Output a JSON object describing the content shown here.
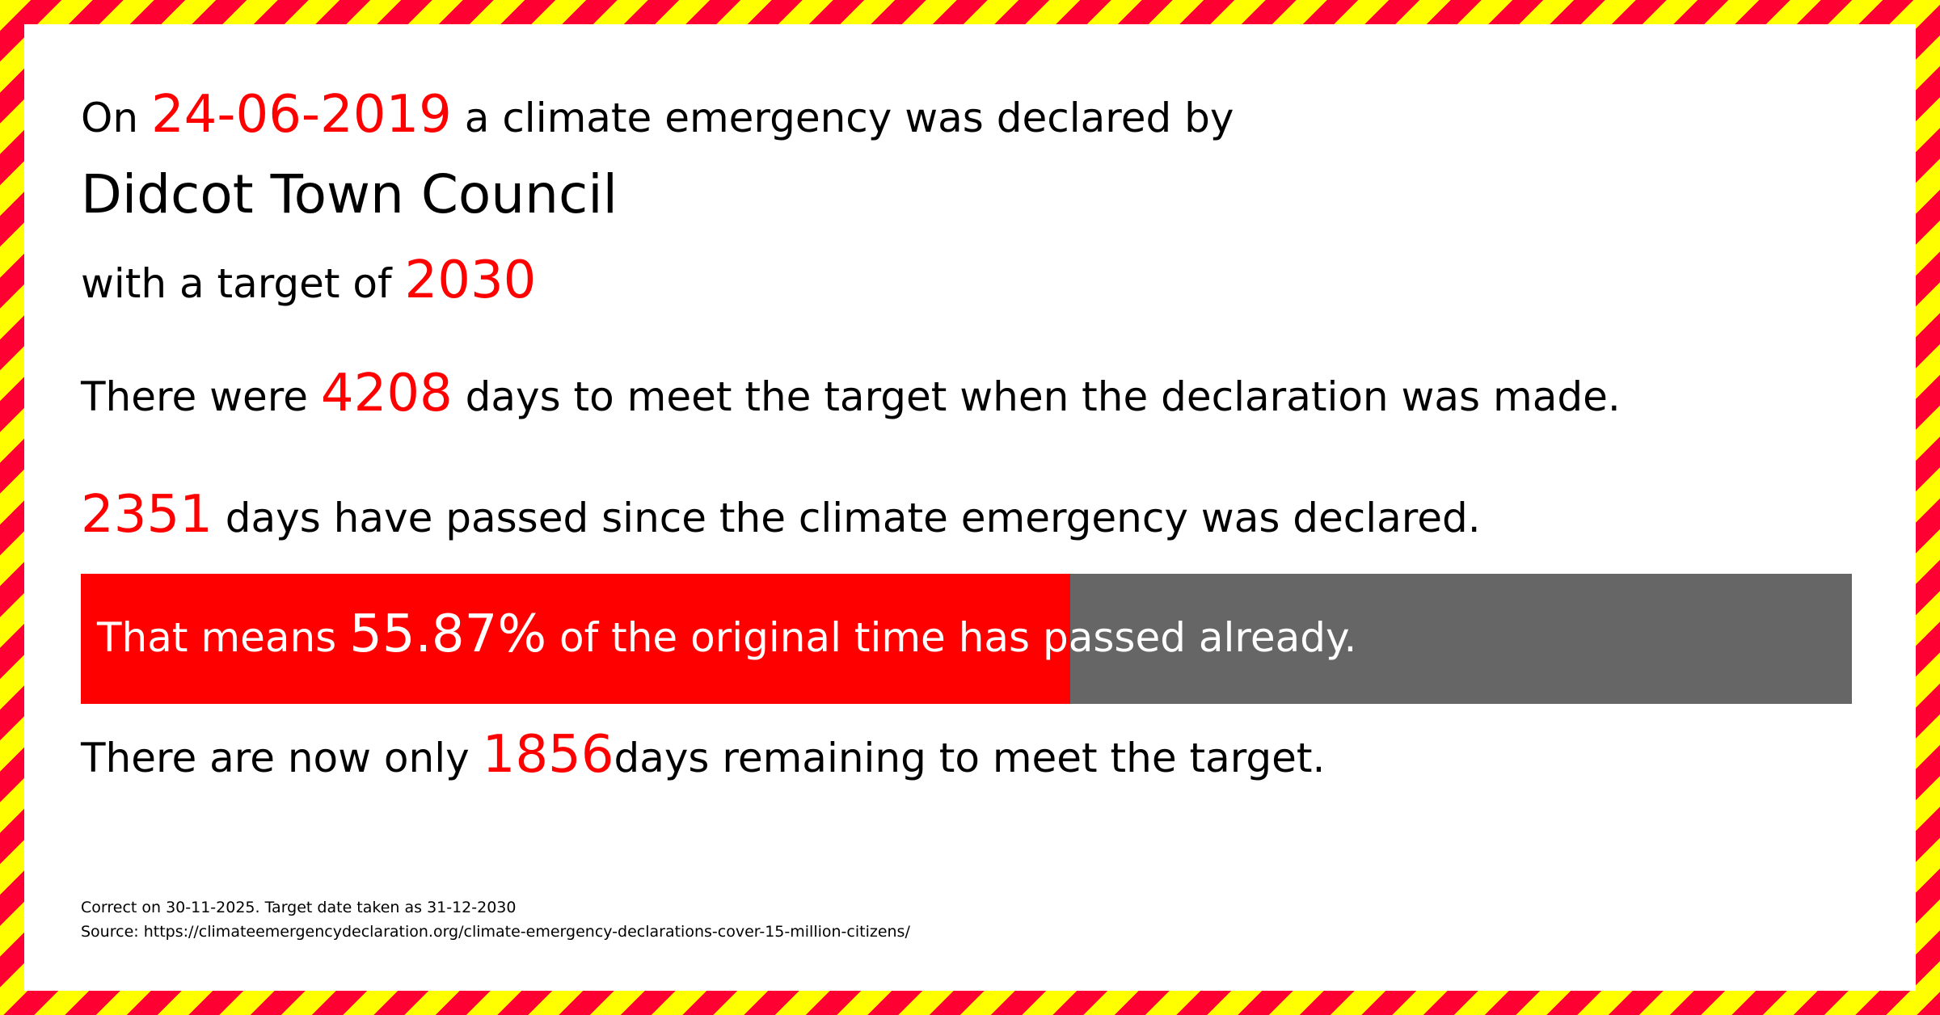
{
  "declaration": {
    "prefix": "On ",
    "date": "24-06-2019",
    "suffix": " a climate emergency was declared by",
    "council": "Didcot Town Council",
    "target_prefix": "with a target of ",
    "target_year": "2030"
  },
  "stats": {
    "total_prefix": "There were ",
    "total_days": "4208",
    "total_suffix": " days to meet the target when the declaration was made.",
    "passed_days": "2351",
    "passed_suffix": " days have passed since the climate emergency was declared.",
    "progress_prefix": "That means ",
    "progress_percent_label": "55.87%",
    "progress_suffix": " of the original time has passed already.",
    "progress_percent": 55.87,
    "remaining_prefix": "There are now only ",
    "remaining_days": "1856",
    "remaining_suffix": "days remaining to meet the target."
  },
  "footer": {
    "correct_on": "Correct on 30-11-2025. Target date taken as 31-12-2030",
    "source": "Source: https://climateemergencydeclaration.org/climate-emergency-declarations-cover-15-million-citizens/"
  },
  "colors": {
    "accent": "#ff0000",
    "bar_remaining": "#666666",
    "border_red": "#ff0033",
    "border_yellow": "#ffff00"
  }
}
